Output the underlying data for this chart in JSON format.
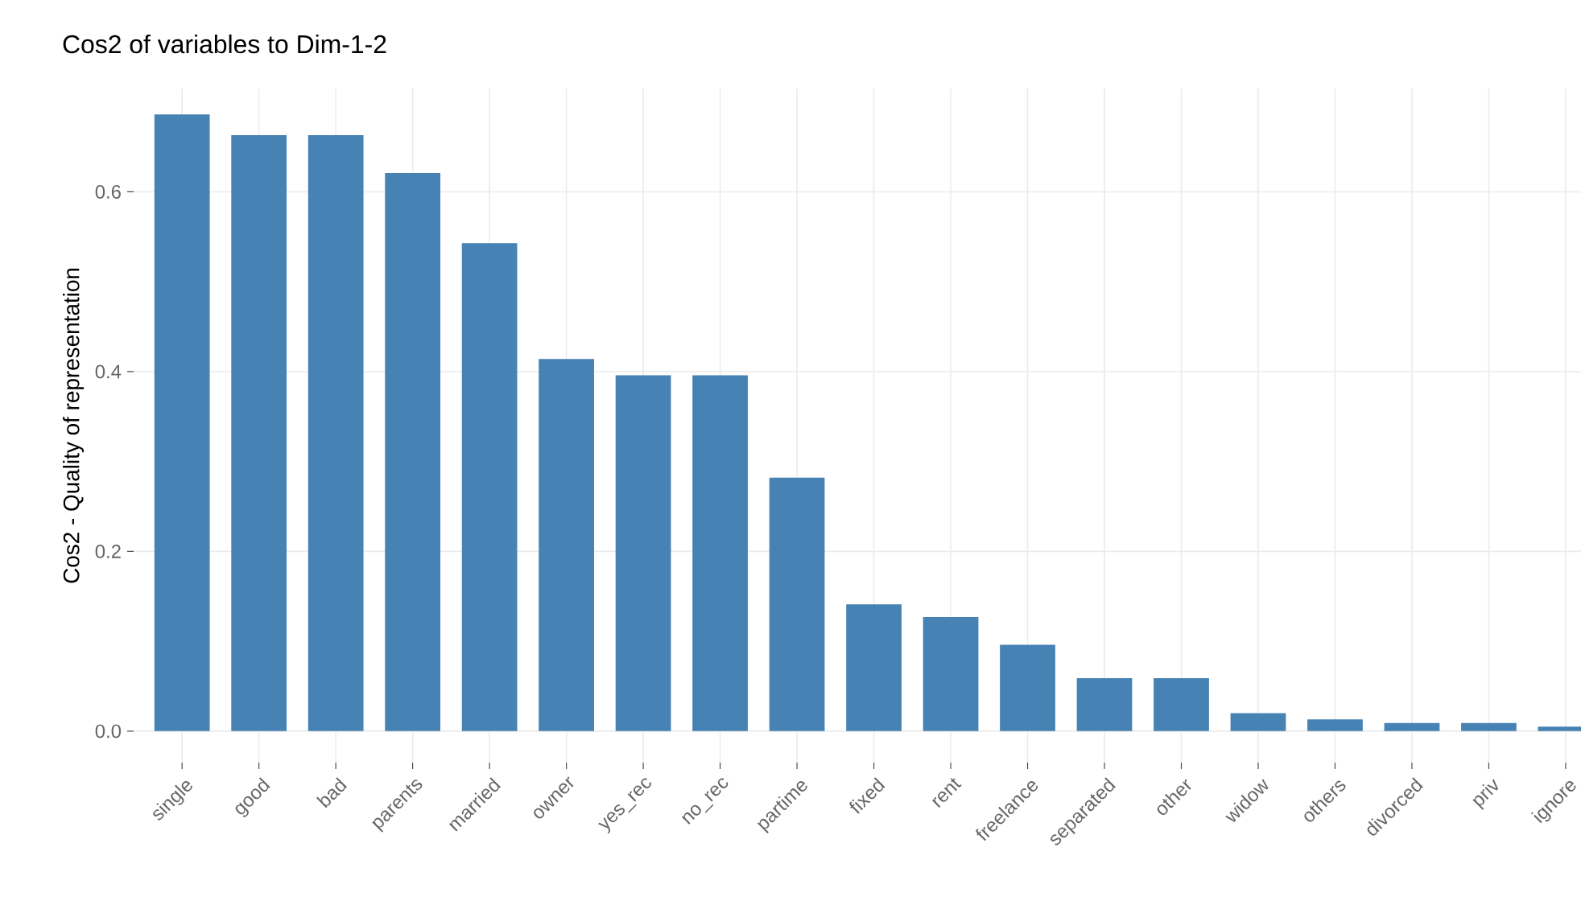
{
  "chart_data": {
    "type": "bar",
    "title": "Cos2 of variables to Dim-1-2",
    "ylabel": "Cos2 - Quality of representation",
    "categories": [
      "single",
      "good",
      "bad",
      "parents",
      "married",
      "owner",
      "yes_rec",
      "no_rec",
      "partime",
      "fixed",
      "rent",
      "freelance",
      "separated",
      "other",
      "widow",
      "others",
      "divorced",
      "priv",
      "ignore"
    ],
    "values": [
      0.686,
      0.663,
      0.663,
      0.621,
      0.543,
      0.414,
      0.396,
      0.396,
      0.282,
      0.141,
      0.127,
      0.096,
      0.059,
      0.059,
      0.02,
      0.013,
      0.009,
      0.009,
      0.005
    ],
    "color": "#4682b4",
    "ylim": [
      -0.035,
      0.715
    ],
    "yticks": [
      {
        "value": 0,
        "label": "0.0"
      },
      {
        "value": 0.2,
        "label": "0.2"
      },
      {
        "value": 0.4,
        "label": "0.4"
      },
      {
        "value": 0.6,
        "label": "0.6"
      }
    ],
    "grid": true
  }
}
